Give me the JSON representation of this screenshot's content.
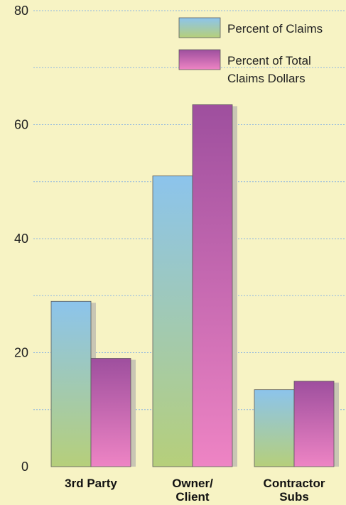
{
  "chart_data": {
    "type": "bar",
    "categories": [
      [
        "3rd Party"
      ],
      [
        "Owner/",
        "Client"
      ],
      [
        "Contractor",
        "Subs"
      ]
    ],
    "series": [
      {
        "name": "Percent of Claims",
        "values": [
          29,
          51,
          13.5
        ]
      },
      {
        "name": [
          "Percent of Total",
          "Claims Dollars"
        ],
        "values": [
          19,
          63.5,
          15
        ]
      }
    ],
    "ylim": [
      0,
      80
    ],
    "yticks": [
      "0",
      "20",
      "40",
      "60",
      "80"
    ],
    "grid": true,
    "legend_position": "top-right",
    "colors": {
      "background": "#f7f3c4",
      "gridline": "#8fb7e0",
      "series1_top": "#8cc4ec",
      "series1_bottom": "#b6cf7a",
      "series2_top": "#9e4f9e",
      "series2_bottom": "#ee84c4",
      "shadow": "#c9c6b4"
    }
  }
}
